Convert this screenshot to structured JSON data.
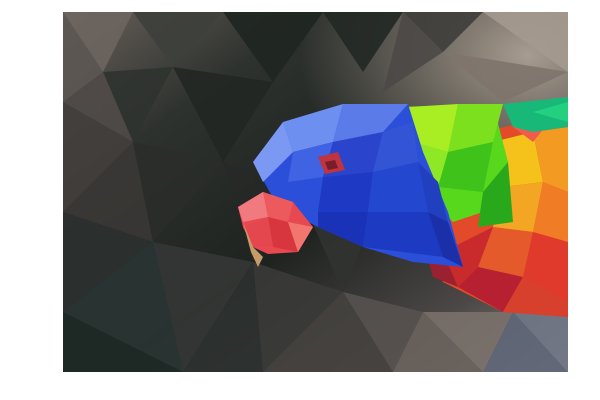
{
  "image": {
    "subject_icon": "parrot-icon",
    "colors": {
      "page_background": "#ffffff",
      "background_dark": "#1f2320",
      "background_mid": "#3b3d3a",
      "background_warm": "#6e6560",
      "background_light": "#9a8f86",
      "head_blue": "#2b4fd8",
      "head_blue_light": "#6d8ff0",
      "beak_red": "#e8484f",
      "beak_pink": "#f07a7d",
      "neck_green": "#58d81c",
      "neck_lime": "#a8ee22",
      "chest_orange": "#f39a22",
      "chest_yellow": "#f5c21b",
      "chest_red": "#d92b2b",
      "teal_edge": "#18b878"
    }
  }
}
